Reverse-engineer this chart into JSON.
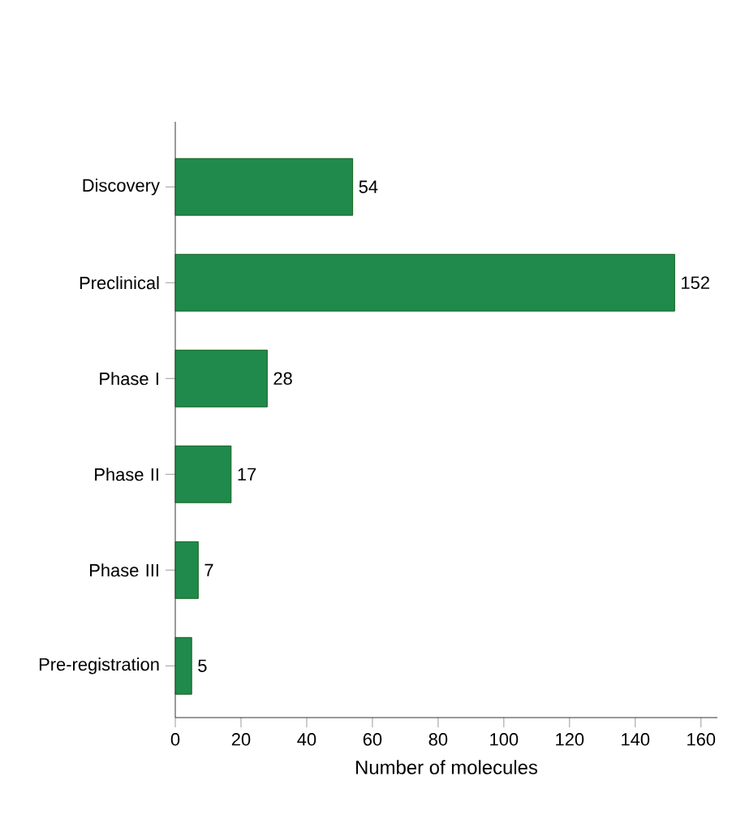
{
  "chart_data": {
    "type": "bar",
    "orientation": "horizontal",
    "xlabel": "Number of molecules",
    "categories": [
      "Discovery",
      "Preclinical",
      "Phase I",
      "Phase II",
      "Phase III",
      "Pre-registration"
    ],
    "values": [
      54,
      152,
      28,
      17,
      7,
      5
    ],
    "color": "#1f8a4c",
    "data_labels": true,
    "xlim": [
      0,
      165
    ],
    "xticks": [
      0,
      20,
      40,
      60,
      80,
      100,
      120,
      140,
      160
    ]
  }
}
